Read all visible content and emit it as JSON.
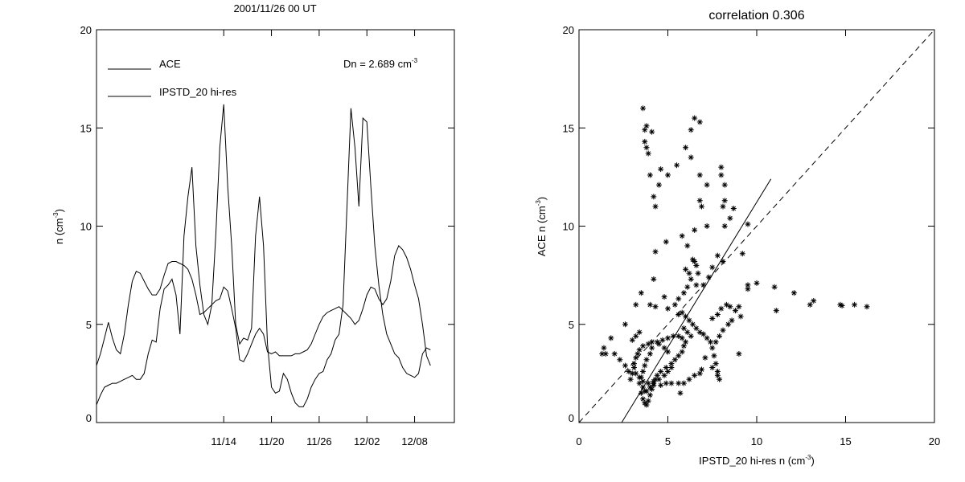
{
  "chart_data": [
    {
      "type": "line",
      "title": "2001/11/26 00 UT",
      "ylabel": "n (cm",
      "ylabel_sup": "-3",
      "ylabel_end": ")",
      "ylim": [
        0,
        20
      ],
      "yticks": [
        0,
        5,
        10,
        15,
        20
      ],
      "xlim": [
        -16,
        29
      ],
      "xticks": [
        {
          "x": 0,
          "label": "11/14"
        },
        {
          "x": 6,
          "label": "11/20"
        },
        {
          "x": 12,
          "label": "11/26"
        },
        {
          "x": 18,
          "label": "12/02"
        },
        {
          "x": 24,
          "label": "12/08"
        }
      ],
      "annotation": {
        "text": "Dn = 2.689 cm",
        "sup": "-3"
      },
      "series": [
        {
          "name": "ACE",
          "x": [
            -16,
            -15.5,
            -15,
            -14.5,
            -14,
            -13.5,
            -13,
            -12.5,
            -12,
            -11.5,
            -11,
            -10.5,
            -10,
            -9.5,
            -9,
            -8.5,
            -8,
            -7.5,
            -7,
            -6.5,
            -6,
            -5.5,
            -5,
            -4.5,
            -4,
            -3.5,
            -3,
            -2.5,
            -2,
            -1.5,
            -1,
            -0.5,
            0,
            0.5,
            1,
            1.5,
            2,
            2.5,
            3,
            3.5,
            4,
            4.5,
            5,
            5.5,
            6,
            6.5,
            7,
            7.5,
            8,
            8.5,
            9,
            9.5,
            10,
            10.5,
            11,
            11.5,
            12,
            12.5,
            13,
            13.5,
            14,
            14.5,
            15,
            15.5,
            16,
            16.5,
            17,
            17.5,
            18,
            18.5,
            19,
            19.5,
            20,
            20.5,
            21,
            21.5,
            22,
            22.5,
            23,
            23.5,
            24,
            24.5,
            25,
            25.5,
            26
          ],
          "y": [
            0.9,
            1.4,
            1.8,
            1.9,
            2.0,
            2.0,
            2.1,
            2.2,
            2.3,
            2.4,
            2.2,
            2.2,
            2.5,
            3.5,
            4.2,
            4.1,
            5.8,
            6.8,
            7.0,
            7.3,
            6.5,
            4.5,
            9.5,
            11.5,
            13.0,
            9.0,
            7.0,
            5.5,
            5.0,
            6.0,
            9.5,
            14.0,
            16.2,
            12.0,
            9.0,
            5.0,
            4.0,
            4.3,
            4.2,
            4.8,
            9.5,
            11.5,
            9.0,
            4.0,
            1.8,
            1.5,
            1.6,
            2.5,
            2.2,
            1.5,
            1.0,
            0.8,
            0.8,
            1.2,
            1.8,
            2.2,
            2.5,
            2.6,
            3.2,
            3.5,
            4.2,
            4.5,
            6.0,
            11.0,
            16.0,
            14.0,
            11.0,
            15.5,
            15.3,
            12.0,
            9.0,
            7.0,
            5.5,
            4.5,
            4.0,
            3.5,
            3.3,
            2.8,
            2.5,
            2.4,
            2.3,
            2.5,
            3.5,
            3.8,
            3.7
          ]
        },
        {
          "name": "IPSTD_20 hi-res",
          "x": [
            -16,
            -15.5,
            -15,
            -14.5,
            -14,
            -13.5,
            -13,
            -12.5,
            -12,
            -11.5,
            -11,
            -10.5,
            -10,
            -9.5,
            -9,
            -8.5,
            -8,
            -7.5,
            -7,
            -6.5,
            -6,
            -5.5,
            -5,
            -4.5,
            -4,
            -3.5,
            -3,
            -2.5,
            -2,
            -1.5,
            -1,
            -0.5,
            0,
            0.5,
            1,
            1.5,
            2,
            2.5,
            3,
            3.5,
            4,
            4.5,
            5,
            5.5,
            6,
            6.5,
            7,
            7.5,
            8,
            8.5,
            9,
            9.5,
            10,
            10.5,
            11,
            11.5,
            12,
            12.5,
            13,
            13.5,
            14,
            14.5,
            15,
            15.5,
            16,
            16.5,
            17,
            17.5,
            18,
            18.5,
            19,
            19.5,
            20,
            20.5,
            21,
            21.5,
            22,
            22.5,
            23,
            23.5,
            24,
            24.5,
            25,
            25.5,
            26
          ],
          "y": [
            2.9,
            3.5,
            4.3,
            5.1,
            4.3,
            3.7,
            3.5,
            4.5,
            6.0,
            7.2,
            7.7,
            7.6,
            7.2,
            6.8,
            6.5,
            6.5,
            6.8,
            7.5,
            8.1,
            8.2,
            8.2,
            8.1,
            8.0,
            7.8,
            7.3,
            6.5,
            5.5,
            5.6,
            5.8,
            6.0,
            6.2,
            6.3,
            6.9,
            6.7,
            5.8,
            4.8,
            3.2,
            3.1,
            3.5,
            4.0,
            4.5,
            4.8,
            4.5,
            3.6,
            3.5,
            3.6,
            3.4,
            3.4,
            3.4,
            3.4,
            3.5,
            3.5,
            3.6,
            3.7,
            4.0,
            4.5,
            5.0,
            5.4,
            5.6,
            5.7,
            5.8,
            5.9,
            5.7,
            5.5,
            5.3,
            5.0,
            5.2,
            5.8,
            6.5,
            6.9,
            6.8,
            6.3,
            6.0,
            6.3,
            7.2,
            8.5,
            9.0,
            8.8,
            8.4,
            7.8,
            7.0,
            6.3,
            5.0,
            3.4,
            2.9
          ]
        }
      ]
    },
    {
      "type": "scatter",
      "title": "correlation 0.306",
      "xlabel": "IPSTD_20 hi-res n (cm",
      "xlabel_sup": "-3",
      "xlabel_end": ")",
      "ylabel": "ACE n (cm",
      "ylabel_sup": "-3",
      "ylabel_end": ")",
      "xlim": [
        0,
        20
      ],
      "ylim": [
        0,
        20
      ],
      "xticks": [
        0,
        5,
        10,
        15,
        20
      ],
      "yticks": [
        0,
        5,
        10,
        15,
        20
      ],
      "fit_line": {
        "x": [
          2.4,
          10.8
        ],
        "y": [
          0.0,
          12.4
        ]
      },
      "identity_line": {
        "x": [
          0,
          20
        ],
        "y": [
          0,
          20
        ]
      },
      "points": [
        [
          3.6,
          16.0
        ],
        [
          3.7,
          14.9
        ],
        [
          3.8,
          15.1
        ],
        [
          3.7,
          14.3
        ],
        [
          3.8,
          14.0
        ],
        [
          3.9,
          13.7
        ],
        [
          4.1,
          14.8
        ],
        [
          4.0,
          12.6
        ],
        [
          4.6,
          12.9
        ],
        [
          4.5,
          12.1
        ],
        [
          5.0,
          12.6
        ],
        [
          4.2,
          11.5
        ],
        [
          4.3,
          11.0
        ],
        [
          6.5,
          15.5
        ],
        [
          6.8,
          15.3
        ],
        [
          6.3,
          14.9
        ],
        [
          6.0,
          14.0
        ],
        [
          6.3,
          13.5
        ],
        [
          6.8,
          12.6
        ],
        [
          5.5,
          13.1
        ],
        [
          7.2,
          12.1
        ],
        [
          6.8,
          11.3
        ],
        [
          6.9,
          11.0
        ],
        [
          8.0,
          13.0
        ],
        [
          8.0,
          12.6
        ],
        [
          8.2,
          12.1
        ],
        [
          8.1,
          11.0
        ],
        [
          8.2,
          11.3
        ],
        [
          8.7,
          10.9
        ],
        [
          8.5,
          10.4
        ],
        [
          8.2,
          10.0
        ],
        [
          9.5,
          10.1
        ],
        [
          7.2,
          10.0
        ],
        [
          6.5,
          9.8
        ],
        [
          5.8,
          9.5
        ],
        [
          6.1,
          9.0
        ],
        [
          4.9,
          9.2
        ],
        [
          4.3,
          8.7
        ],
        [
          9.2,
          8.6
        ],
        [
          8.1,
          8.2
        ],
        [
          9.5,
          7.0
        ],
        [
          10.0,
          7.1
        ],
        [
          9.5,
          6.8
        ],
        [
          11.0,
          6.9
        ],
        [
          12.1,
          6.6
        ],
        [
          13.2,
          6.2
        ],
        [
          13.0,
          6.0
        ],
        [
          14.7,
          6.0
        ],
        [
          14.8,
          5.95
        ],
        [
          15.5,
          6.0
        ],
        [
          16.2,
          5.9
        ],
        [
          11.1,
          5.7
        ],
        [
          9.1,
          5.4
        ],
        [
          9.0,
          3.5
        ],
        [
          7.8,
          8.5
        ],
        [
          7.5,
          7.9
        ],
        [
          7.3,
          7.4
        ],
        [
          7.0,
          7.0
        ],
        [
          6.6,
          7.0
        ],
        [
          4.2,
          7.3
        ],
        [
          3.5,
          6.6
        ],
        [
          3.2,
          6.0
        ],
        [
          4.0,
          6.0
        ],
        [
          4.3,
          5.9
        ],
        [
          4.8,
          6.4
        ],
        [
          5.0,
          5.8
        ],
        [
          6.4,
          8.3
        ],
        [
          6.5,
          8.2
        ],
        [
          6.6,
          8.0
        ],
        [
          6.7,
          7.6
        ],
        [
          6.2,
          7.6
        ],
        [
          6.0,
          7.8
        ],
        [
          6.3,
          7.3
        ],
        [
          6.1,
          6.9
        ],
        [
          5.9,
          6.6
        ],
        [
          5.6,
          6.3
        ],
        [
          5.4,
          6.0
        ],
        [
          5.6,
          5.5
        ],
        [
          5.8,
          5.6
        ],
        [
          6.0,
          5.4
        ],
        [
          6.2,
          5.2
        ],
        [
          6.4,
          5.0
        ],
        [
          6.6,
          4.8
        ],
        [
          6.8,
          4.6
        ],
        [
          7.0,
          4.5
        ],
        [
          7.2,
          4.3
        ],
        [
          7.4,
          4.1
        ],
        [
          6.3,
          4.4
        ],
        [
          6.1,
          4.6
        ],
        [
          5.9,
          4.8
        ],
        [
          7.5,
          5.3
        ],
        [
          7.8,
          5.5
        ],
        [
          8.0,
          5.8
        ],
        [
          8.3,
          6.0
        ],
        [
          8.5,
          5.9
        ],
        [
          8.8,
          5.7
        ],
        [
          9.0,
          5.9
        ],
        [
          8.6,
          5.2
        ],
        [
          8.4,
          5.0
        ],
        [
          8.1,
          4.7
        ],
        [
          7.9,
          4.4
        ],
        [
          7.7,
          4.1
        ],
        [
          7.5,
          3.8
        ],
        [
          7.6,
          3.4
        ],
        [
          7.7,
          3.0
        ],
        [
          7.8,
          2.6
        ],
        [
          7.9,
          2.2
        ],
        [
          7.8,
          2.4
        ],
        [
          7.5,
          2.8
        ],
        [
          7.1,
          3.3
        ],
        [
          6.9,
          2.7
        ],
        [
          6.8,
          2.5
        ],
        [
          6.5,
          2.4
        ],
        [
          6.2,
          2.2
        ],
        [
          5.9,
          2.0
        ],
        [
          5.6,
          2.0
        ],
        [
          5.2,
          2.0
        ],
        [
          4.9,
          2.0
        ],
        [
          4.6,
          1.9
        ],
        [
          4.2,
          1.9
        ],
        [
          4.0,
          1.8
        ],
        [
          3.8,
          1.6
        ],
        [
          5.7,
          1.5
        ],
        [
          3.5,
          1.5
        ],
        [
          3.6,
          1.2
        ],
        [
          3.7,
          1.0
        ],
        [
          3.8,
          0.9
        ],
        [
          3.9,
          1.1
        ],
        [
          4.0,
          1.4
        ],
        [
          4.1,
          1.7
        ],
        [
          4.2,
          2.0
        ],
        [
          4.3,
          2.2
        ],
        [
          4.4,
          2.4
        ],
        [
          4.6,
          2.6
        ],
        [
          4.9,
          2.8
        ],
        [
          5.2,
          3.0
        ],
        [
          5.4,
          3.2
        ],
        [
          5.6,
          3.4
        ],
        [
          5.8,
          3.6
        ],
        [
          5.9,
          3.9
        ],
        [
          6.0,
          4.1
        ],
        [
          5.8,
          4.3
        ],
        [
          5.6,
          4.4
        ],
        [
          5.3,
          4.4
        ],
        [
          5.0,
          4.3
        ],
        [
          4.7,
          4.2
        ],
        [
          4.4,
          4.1
        ],
        [
          4.1,
          4.1
        ],
        [
          3.9,
          4.0
        ],
        [
          3.6,
          3.9
        ],
        [
          3.4,
          3.7
        ],
        [
          3.3,
          3.5
        ],
        [
          3.2,
          3.3
        ],
        [
          3.1,
          3.0
        ],
        [
          3.1,
          2.8
        ],
        [
          3.2,
          2.5
        ],
        [
          3.4,
          2.3
        ],
        [
          3.6,
          2.1
        ],
        [
          3.9,
          2.0
        ],
        [
          4.2,
          2.1
        ],
        [
          4.5,
          2.2
        ],
        [
          4.8,
          2.4
        ],
        [
          5.0,
          2.6
        ],
        [
          5.2,
          2.8
        ],
        [
          5.0,
          3.6
        ],
        [
          4.8,
          3.8
        ],
        [
          4.5,
          4.0
        ],
        [
          4.1,
          3.8
        ],
        [
          4.0,
          3.5
        ],
        [
          3.8,
          3.2
        ],
        [
          3.7,
          2.9
        ],
        [
          3.6,
          2.6
        ],
        [
          3.5,
          2.3
        ],
        [
          3.4,
          2.0
        ],
        [
          3.6,
          1.8
        ],
        [
          3.7,
          1.6
        ],
        [
          1.3,
          3.5
        ],
        [
          1.4,
          3.8
        ],
        [
          1.5,
          3.5
        ],
        [
          1.8,
          4.3
        ],
        [
          2.0,
          3.5
        ],
        [
          2.3,
          3.2
        ],
        [
          2.6,
          2.9
        ],
        [
          2.8,
          2.6
        ],
        [
          3.0,
          2.5
        ],
        [
          2.9,
          2.2
        ],
        [
          2.6,
          5.0
        ],
        [
          3.0,
          4.2
        ],
        [
          3.2,
          4.4
        ],
        [
          3.4,
          4.6
        ]
      ]
    }
  ]
}
